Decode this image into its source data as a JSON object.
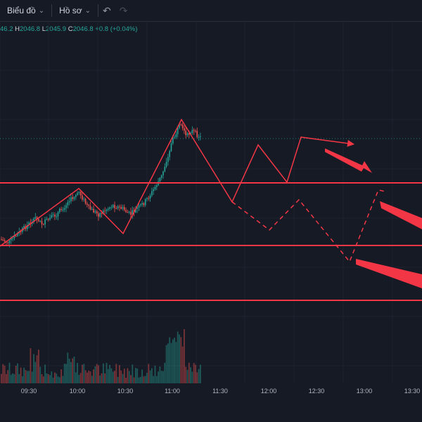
{
  "toolbar": {
    "chart_menu": "Biểu đồ",
    "profile_menu": "Hồ sơ"
  },
  "ohlc": {
    "open_value": "46.2",
    "high_label": "H",
    "high_value": "2046.8",
    "low_label": "L",
    "low_value": "2045.9",
    "close_label": "C",
    "close_value": "2046.8",
    "change": "+0.8 (+0.04%)"
  },
  "colors": {
    "background": "#161a25",
    "up": "#26a69a",
    "down": "#ef5350",
    "drawing": "#f23645"
  },
  "chart_data": {
    "type": "candlestick",
    "x_tick_labels": [
      "09:30",
      "10:00",
      "10:30",
      "11:00",
      "11:30",
      "12:00",
      "12:30",
      "13:00",
      "13:30"
    ],
    "drawings": [
      "horizontal-level",
      "horizontal-level",
      "horizontal-level",
      "zigzag-projection",
      "dashed-projection",
      "arrow",
      "arrow",
      "arrow",
      "arrow"
    ]
  }
}
